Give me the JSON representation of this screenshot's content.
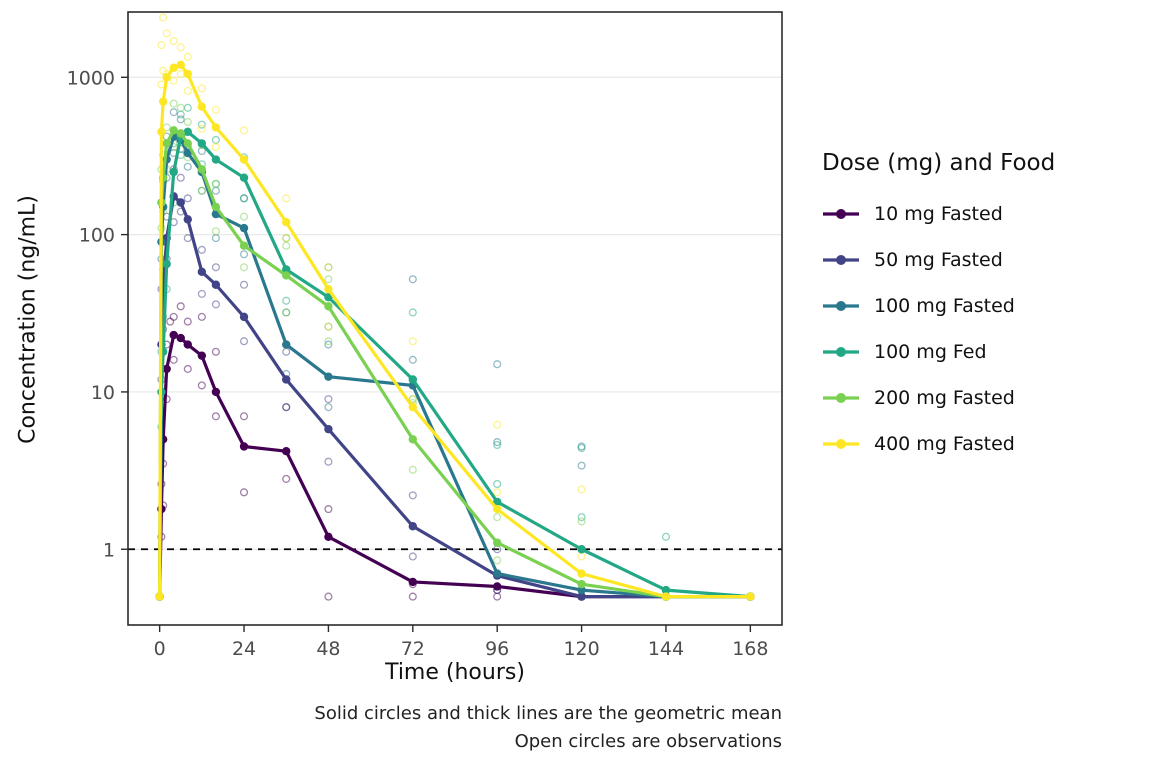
{
  "chart_data": {
    "type": "line",
    "title": "",
    "xlabel": "Time (hours)",
    "ylabel": "Concentration (ng/mL)",
    "legend_title": "Dose (mg) and Food",
    "legend_position": "right",
    "caption": [
      "Solid circles and thick lines are the geometric mean",
      "Open circles are observations"
    ],
    "grid": "horizontal-major-only",
    "y_scale": "log10",
    "x_ticks": [
      0,
      24,
      48,
      72,
      96,
      120,
      144,
      168
    ],
    "y_ticks": [
      1,
      10,
      100,
      1000
    ],
    "xlim": [
      -9,
      177
    ],
    "ylim": [
      0.33,
      2600
    ],
    "reference_line_y": 1,
    "reference_line_style": "dashed-black",
    "x": [
      0,
      0.5,
      1,
      2,
      4,
      6,
      8,
      12,
      16,
      24,
      36,
      48,
      72,
      96,
      120,
      144,
      168
    ],
    "series": [
      {
        "name": "10 mg Fasted",
        "color": "#440154",
        "values": [
          0.5,
          1.8,
          5,
          14,
          23,
          22,
          20,
          17,
          10,
          4.5,
          4.2,
          1.2,
          0.62,
          0.58,
          0.5,
          0.5,
          0.5
        ],
        "observations": [
          [
            0.5,
            1.2
          ],
          [
            0.5,
            2.6
          ],
          [
            1,
            3.5
          ],
          [
            1,
            1.9
          ],
          [
            2,
            9
          ],
          [
            2,
            20
          ],
          [
            3,
            28
          ],
          [
            4,
            30
          ],
          [
            4,
            16
          ],
          [
            6,
            35
          ],
          [
            6,
            22
          ],
          [
            8,
            28
          ],
          [
            8,
            14
          ],
          [
            12,
            30
          ],
          [
            12,
            11
          ],
          [
            16,
            18
          ],
          [
            16,
            7
          ],
          [
            24,
            7
          ],
          [
            24,
            2.3
          ],
          [
            36,
            8
          ],
          [
            36,
            2.8
          ],
          [
            48,
            1.8
          ],
          [
            48,
            0.5
          ],
          [
            72,
            0.6
          ],
          [
            72,
            0.5
          ],
          [
            96,
            0.55
          ],
          [
            96,
            0.5
          ]
        ]
      },
      {
        "name": "50 mg Fasted",
        "color": "#414487",
        "values": [
          0.5,
          20,
          45,
          95,
          175,
          160,
          125,
          58,
          48,
          30,
          12,
          5.8,
          1.4,
          0.68,
          0.5,
          0.5,
          0.5
        ],
        "observations": [
          [
            0.5,
            12
          ],
          [
            0.5,
            45
          ],
          [
            1,
            60
          ],
          [
            1,
            25
          ],
          [
            2,
            130
          ],
          [
            2,
            70
          ],
          [
            4,
            260
          ],
          [
            4,
            120
          ],
          [
            6,
            230
          ],
          [
            6,
            140
          ],
          [
            8,
            170
          ],
          [
            8,
            95
          ],
          [
            12,
            80
          ],
          [
            12,
            42
          ],
          [
            16,
            62
          ],
          [
            16,
            36
          ],
          [
            24,
            48
          ],
          [
            24,
            21
          ],
          [
            36,
            18
          ],
          [
            36,
            8
          ],
          [
            48,
            9
          ],
          [
            48,
            3.6
          ],
          [
            72,
            2.2
          ],
          [
            72,
            0.9
          ],
          [
            96,
            1.0
          ],
          [
            96,
            0.55
          ],
          [
            120,
            0.5
          ]
        ]
      },
      {
        "name": "100 mg Fasted",
        "color": "#2a788e",
        "values": [
          0.5,
          90,
          150,
          300,
          420,
          400,
          330,
          250,
          135,
          110,
          20,
          12.5,
          11,
          0.7,
          0.55,
          0.5,
          0.5
        ],
        "observations": [
          [
            0.5,
            70
          ],
          [
            0.5,
            160
          ],
          [
            1,
            220
          ],
          [
            1,
            90
          ],
          [
            2,
            420
          ],
          [
            2,
            230
          ],
          [
            4,
            600
          ],
          [
            4,
            330
          ],
          [
            6,
            540
          ],
          [
            6,
            350
          ],
          [
            8,
            450
          ],
          [
            8,
            270
          ],
          [
            12,
            340
          ],
          [
            12,
            190
          ],
          [
            16,
            190
          ],
          [
            16,
            95
          ],
          [
            24,
            170
          ],
          [
            24,
            75
          ],
          [
            36,
            32
          ],
          [
            36,
            13
          ],
          [
            48,
            20
          ],
          [
            48,
            8
          ],
          [
            72,
            52
          ],
          [
            72,
            16
          ],
          [
            96,
            15
          ],
          [
            96,
            4.8
          ],
          [
            120,
            4.5
          ],
          [
            120,
            3.4
          ],
          [
            144,
            0.5
          ]
        ]
      },
      {
        "name": "100 mg Fed",
        "color": "#22a884",
        "values": [
          0.5,
          10,
          18,
          65,
          250,
          420,
          450,
          380,
          300,
          230,
          60,
          40,
          12,
          2.0,
          1.0,
          0.55,
          0.5
        ],
        "observations": [
          [
            0.5,
            6
          ],
          [
            0.5,
            18
          ],
          [
            1,
            30
          ],
          [
            1,
            10
          ],
          [
            2,
            95
          ],
          [
            2,
            45
          ],
          [
            4,
            380
          ],
          [
            4,
            160
          ],
          [
            6,
            580
          ],
          [
            6,
            320
          ],
          [
            8,
            640
          ],
          [
            8,
            370
          ],
          [
            12,
            500
          ],
          [
            12,
            280
          ],
          [
            16,
            400
          ],
          [
            16,
            210
          ],
          [
            24,
            310
          ],
          [
            24,
            170
          ],
          [
            36,
            95
          ],
          [
            36,
            38
          ],
          [
            48,
            62
          ],
          [
            48,
            26
          ],
          [
            72,
            32
          ],
          [
            72,
            9
          ],
          [
            96,
            4.6
          ],
          [
            96,
            2.6
          ],
          [
            120,
            4.4
          ],
          [
            120,
            1.6
          ],
          [
            144,
            1.2
          ]
        ]
      },
      {
        "name": "200 mg Fasted",
        "color": "#7ad151",
        "values": [
          0.5,
          160,
          230,
          380,
          460,
          440,
          380,
          260,
          150,
          85,
          55,
          35,
          5,
          1.1,
          0.6,
          0.5,
          0.5
        ],
        "observations": [
          [
            0.5,
            110
          ],
          [
            0.5,
            260
          ],
          [
            1,
            320
          ],
          [
            1,
            140
          ],
          [
            2,
            480
          ],
          [
            2,
            260
          ],
          [
            4,
            680
          ],
          [
            4,
            360
          ],
          [
            6,
            640
          ],
          [
            6,
            400
          ],
          [
            8,
            520
          ],
          [
            8,
            310
          ],
          [
            12,
            370
          ],
          [
            12,
            190
          ],
          [
            16,
            210
          ],
          [
            16,
            105
          ],
          [
            24,
            130
          ],
          [
            24,
            62
          ],
          [
            36,
            85
          ],
          [
            36,
            32
          ],
          [
            48,
            52
          ],
          [
            48,
            21
          ],
          [
            72,
            8.5
          ],
          [
            72,
            3.2
          ],
          [
            96,
            1.6
          ],
          [
            96,
            0.85
          ],
          [
            120,
            1.5
          ],
          [
            120,
            0.6
          ],
          [
            144,
            0.5
          ]
        ]
      },
      {
        "name": "400 mg Fasted",
        "color": "#fde725",
        "values": [
          0.5,
          450,
          700,
          1000,
          1150,
          1200,
          1050,
          650,
          480,
          300,
          120,
          45,
          8,
          1.8,
          0.7,
          0.5,
          0.5
        ],
        "observations": [
          [
            0.5,
            900
          ],
          [
            0.5,
            1600
          ],
          [
            1,
            2400
          ],
          [
            1,
            1100
          ],
          [
            2,
            1900
          ],
          [
            2,
            1050
          ],
          [
            4,
            1700
          ],
          [
            4,
            950
          ],
          [
            6,
            1550
          ],
          [
            6,
            1050
          ],
          [
            8,
            1350
          ],
          [
            8,
            820
          ],
          [
            12,
            850
          ],
          [
            12,
            470
          ],
          [
            16,
            620
          ],
          [
            16,
            360
          ],
          [
            24,
            460
          ],
          [
            24,
            230
          ],
          [
            36,
            170
          ],
          [
            36,
            95
          ],
          [
            48,
            62
          ],
          [
            48,
            26
          ],
          [
            72,
            21
          ],
          [
            72,
            9
          ],
          [
            96,
            6.2
          ],
          [
            96,
            2.3
          ],
          [
            120,
            2.4
          ],
          [
            120,
            0.9
          ],
          [
            144,
            0.5
          ],
          [
            168,
            0.5
          ]
        ]
      }
    ]
  },
  "style": {
    "panel_border_color": "#2b2b2b",
    "gridline_color": "#e8e8e8",
    "tick_label_color": "#4d4d4d",
    "reference_line_color": "#000000"
  }
}
